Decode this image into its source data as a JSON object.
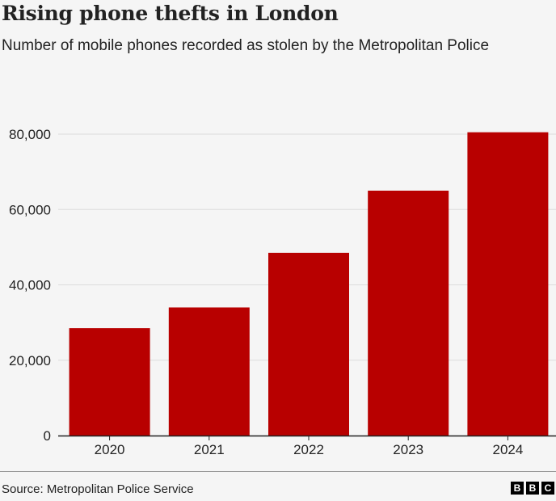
{
  "title": "Rising phone thefts in London",
  "subtitle": "Number of mobile phones recorded as stolen by the Metropolitan Police",
  "source": "Source: Metropolitan Police Service",
  "logo": [
    "B",
    "B",
    "C"
  ],
  "colors": {
    "bar": "#b80000",
    "grid": "#dcdcdc",
    "axis": "#222222"
  },
  "chart_data": {
    "type": "bar",
    "categories": [
      "2020",
      "2021",
      "2022",
      "2023",
      "2024"
    ],
    "values": [
      28500,
      34000,
      48500,
      65000,
      80500
    ],
    "xlabel": "",
    "ylabel": "",
    "ylim": [
      0,
      80000
    ],
    "yticks": [
      0,
      20000,
      40000,
      60000,
      80000
    ],
    "ytick_labels": [
      "0",
      "20,000",
      "40,000",
      "60,000",
      "80,000"
    ],
    "grid": true,
    "legend": "none"
  }
}
